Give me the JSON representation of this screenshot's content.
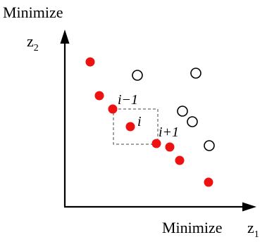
{
  "axes": {
    "y_label": "Minimize",
    "y_var": "z",
    "y_sub": "2",
    "x_label": "Minimize",
    "x_var": "z",
    "x_sub": "1"
  },
  "point_labels": {
    "prev": "i−1",
    "current": "i",
    "next": "i+1"
  },
  "colors": {
    "nondominated": "#ee1111",
    "dominated_stroke": "#000000",
    "axis": "#000000",
    "box": "#444444"
  }
}
